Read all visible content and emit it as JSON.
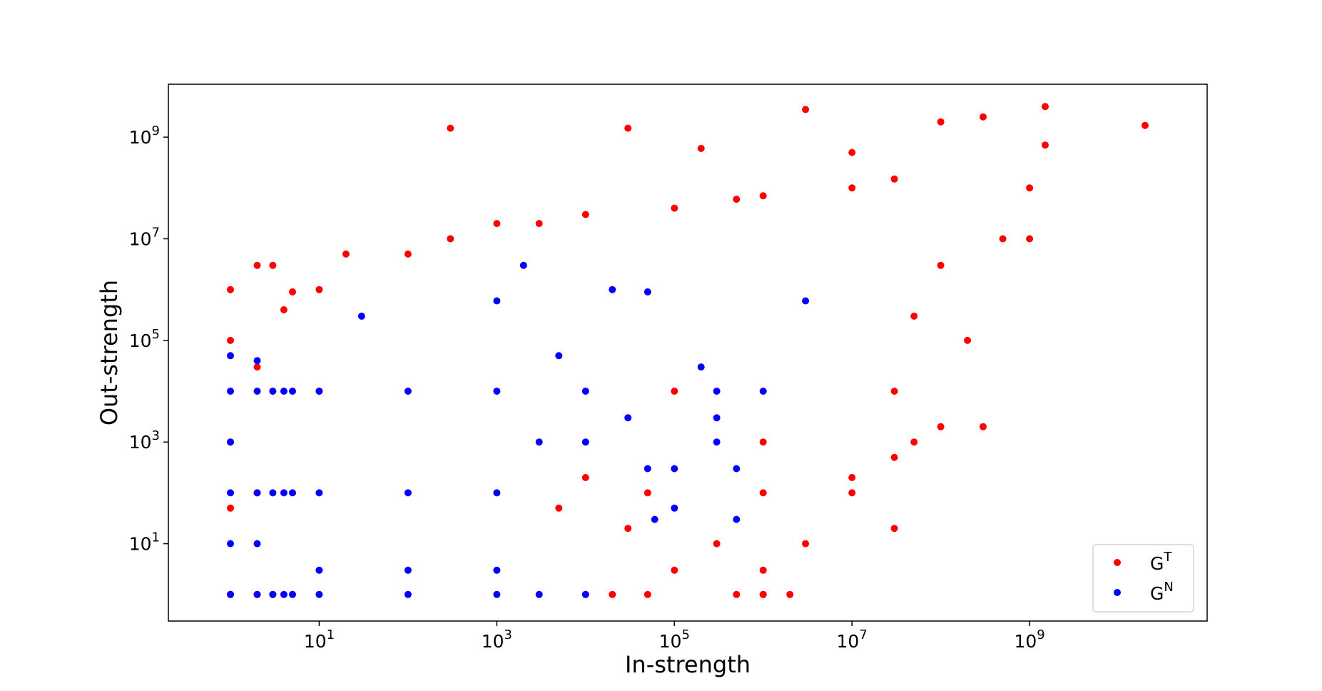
{
  "chart_data": {
    "type": "scatter",
    "title": "",
    "xlabel": "In-strength",
    "ylabel": "Out-strength",
    "xscale": "log",
    "yscale": "log",
    "xlim": [
      0.2,
      100000000000.0
    ],
    "ylim": [
      0.3,
      11000000000.0
    ],
    "grid": false,
    "legend": {
      "position": "bottom-right",
      "entries": [
        "G^T",
        "G^N"
      ]
    },
    "x_ticks": [
      {
        "base": "10",
        "exp": "1"
      },
      {
        "base": "10",
        "exp": "3"
      },
      {
        "base": "10",
        "exp": "5"
      },
      {
        "base": "10",
        "exp": "7"
      },
      {
        "base": "10",
        "exp": "9"
      }
    ],
    "y_ticks": [
      {
        "base": "10",
        "exp": "1"
      },
      {
        "base": "10",
        "exp": "3"
      },
      {
        "base": "10",
        "exp": "5"
      },
      {
        "base": "10",
        "exp": "7"
      },
      {
        "base": "10",
        "exp": "9"
      }
    ],
    "x_tick_values": [
      10,
      1000,
      100000,
      10000000,
      1000000000
    ],
    "y_tick_values": [
      10,
      1000,
      100000,
      10000000,
      1000000000
    ],
    "series": [
      {
        "name": "G^T",
        "label_base": "G",
        "label_sup": "T",
        "color": "#ff0000",
        "points": [
          [
            1,
            1
          ],
          [
            1,
            50
          ],
          [
            1,
            1000
          ],
          [
            1,
            100000
          ],
          [
            1,
            1000000
          ],
          [
            2,
            1
          ],
          [
            2,
            100
          ],
          [
            2,
            30000
          ],
          [
            2,
            3000000
          ],
          [
            3,
            1
          ],
          [
            3,
            3000000
          ],
          [
            4,
            400000
          ],
          [
            5,
            900000
          ],
          [
            10,
            10000
          ],
          [
            10,
            1000000
          ],
          [
            20,
            5000000
          ],
          [
            100,
            5000000
          ],
          [
            300,
            10000000
          ],
          [
            1000,
            20000000
          ],
          [
            3000,
            20000000
          ],
          [
            10000,
            30000000
          ],
          [
            100000,
            40000000
          ],
          [
            500000,
            60000000
          ],
          [
            1000000,
            70000000
          ],
          [
            10000000,
            100000000
          ],
          [
            30000000,
            150000000
          ],
          [
            100000,
            10000
          ],
          [
            1000000,
            1000
          ],
          [
            10000000,
            100
          ],
          [
            30000000,
            10000
          ],
          [
            1000000,
            100
          ],
          [
            300000,
            10
          ],
          [
            100000,
            3
          ],
          [
            1000000,
            3
          ],
          [
            1000000,
            1
          ],
          [
            50000,
            1
          ],
          [
            20000,
            1
          ],
          [
            10000,
            1
          ],
          [
            10000,
            200
          ],
          [
            5000,
            50
          ],
          [
            30000,
            20
          ],
          [
            50000,
            100
          ],
          [
            300,
            1500000000
          ],
          [
            30000,
            1500000000
          ],
          [
            200000,
            600000000
          ],
          [
            3000000,
            3500000000
          ],
          [
            10000000,
            500000000
          ],
          [
            100000000,
            2000000000
          ],
          [
            300000000,
            2500000000
          ],
          [
            1500000000,
            4000000000
          ],
          [
            20000000000,
            1700000000
          ],
          [
            1500000000,
            700000000
          ],
          [
            1000000000,
            100000000
          ],
          [
            1000000000,
            10000000
          ],
          [
            500000000,
            10000000
          ],
          [
            100000000,
            3000000
          ],
          [
            50000000,
            300000
          ],
          [
            200000000,
            100000
          ],
          [
            100000000,
            2000
          ],
          [
            300000000,
            2000
          ],
          [
            30000000,
            20
          ],
          [
            30000000,
            500
          ],
          [
            50000000,
            1000
          ],
          [
            10000000,
            200
          ],
          [
            3000000,
            10
          ],
          [
            2000000,
            1
          ],
          [
            1000000,
            1
          ],
          [
            500000,
            1
          ]
        ]
      },
      {
        "name": "G^N",
        "label_base": "G",
        "label_sup": "N",
        "color": "#0000ff",
        "points": [
          [
            1,
            1
          ],
          [
            1,
            10
          ],
          [
            1,
            100
          ],
          [
            1,
            1000
          ],
          [
            1,
            10000
          ],
          [
            1,
            50000
          ],
          [
            2,
            1
          ],
          [
            2,
            10
          ],
          [
            2,
            100
          ],
          [
            2,
            10000
          ],
          [
            2,
            40000
          ],
          [
            3,
            1
          ],
          [
            3,
            100
          ],
          [
            3,
            10000
          ],
          [
            4,
            1
          ],
          [
            4,
            100
          ],
          [
            4,
            10000
          ],
          [
            5,
            1
          ],
          [
            5,
            100
          ],
          [
            5,
            10000
          ],
          [
            10,
            1
          ],
          [
            10,
            3
          ],
          [
            10,
            100
          ],
          [
            10,
            10000
          ],
          [
            30,
            300000
          ],
          [
            100,
            1
          ],
          [
            100,
            3
          ],
          [
            100,
            100
          ],
          [
            100,
            10000
          ],
          [
            1000,
            1
          ],
          [
            1000,
            3
          ],
          [
            1000,
            100
          ],
          [
            1000,
            10000
          ],
          [
            1000,
            600000
          ],
          [
            2000,
            3000000
          ],
          [
            3000,
            1
          ],
          [
            3000,
            1000
          ],
          [
            5000,
            50000
          ],
          [
            10000,
            1
          ],
          [
            10000,
            1000
          ],
          [
            10000,
            10000
          ],
          [
            20000,
            1000000
          ],
          [
            50000,
            900000
          ],
          [
            30000,
            3000
          ],
          [
            50000,
            300
          ],
          [
            60000,
            30
          ],
          [
            100000,
            50
          ],
          [
            100000,
            300
          ],
          [
            200000,
            30000
          ],
          [
            300000,
            3000
          ],
          [
            300000,
            10000
          ],
          [
            3000000,
            600000
          ],
          [
            500000,
            30
          ],
          [
            500000,
            300
          ],
          [
            300000,
            1000
          ],
          [
            1000000,
            10000
          ]
        ]
      }
    ]
  }
}
